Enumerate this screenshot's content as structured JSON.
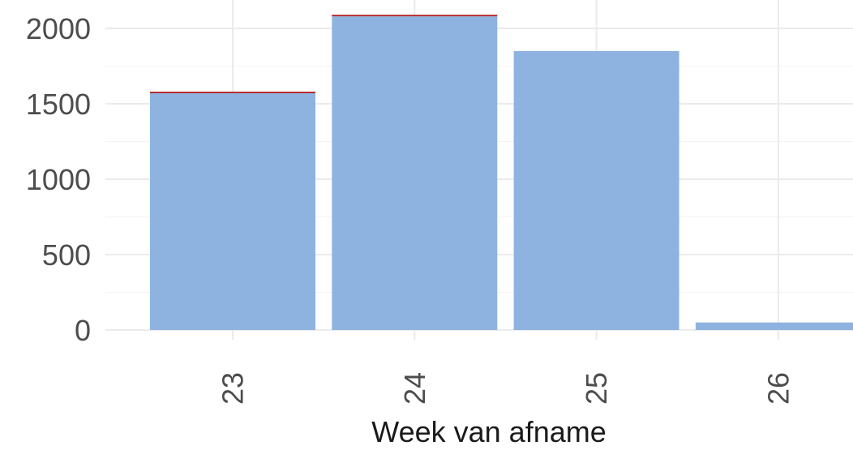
{
  "chart_data": {
    "type": "bar",
    "categories": [
      "23",
      "24",
      "25",
      "26"
    ],
    "series": [
      {
        "values": [
          1570,
          2080,
          1850,
          50
        ],
        "color": "#8fb3e0"
      },
      {
        "values": [
          10,
          10,
          0,
          0
        ],
        "color": "#b22222"
      }
    ],
    "stacked": true,
    "xlabel": "Week van afname",
    "ylabel": "",
    "ylim": [
      0,
      2150
    ],
    "yticks": [
      0,
      500,
      1000,
      1500,
      2000
    ],
    "grid": true,
    "x_tick_rotation": "vertical"
  }
}
